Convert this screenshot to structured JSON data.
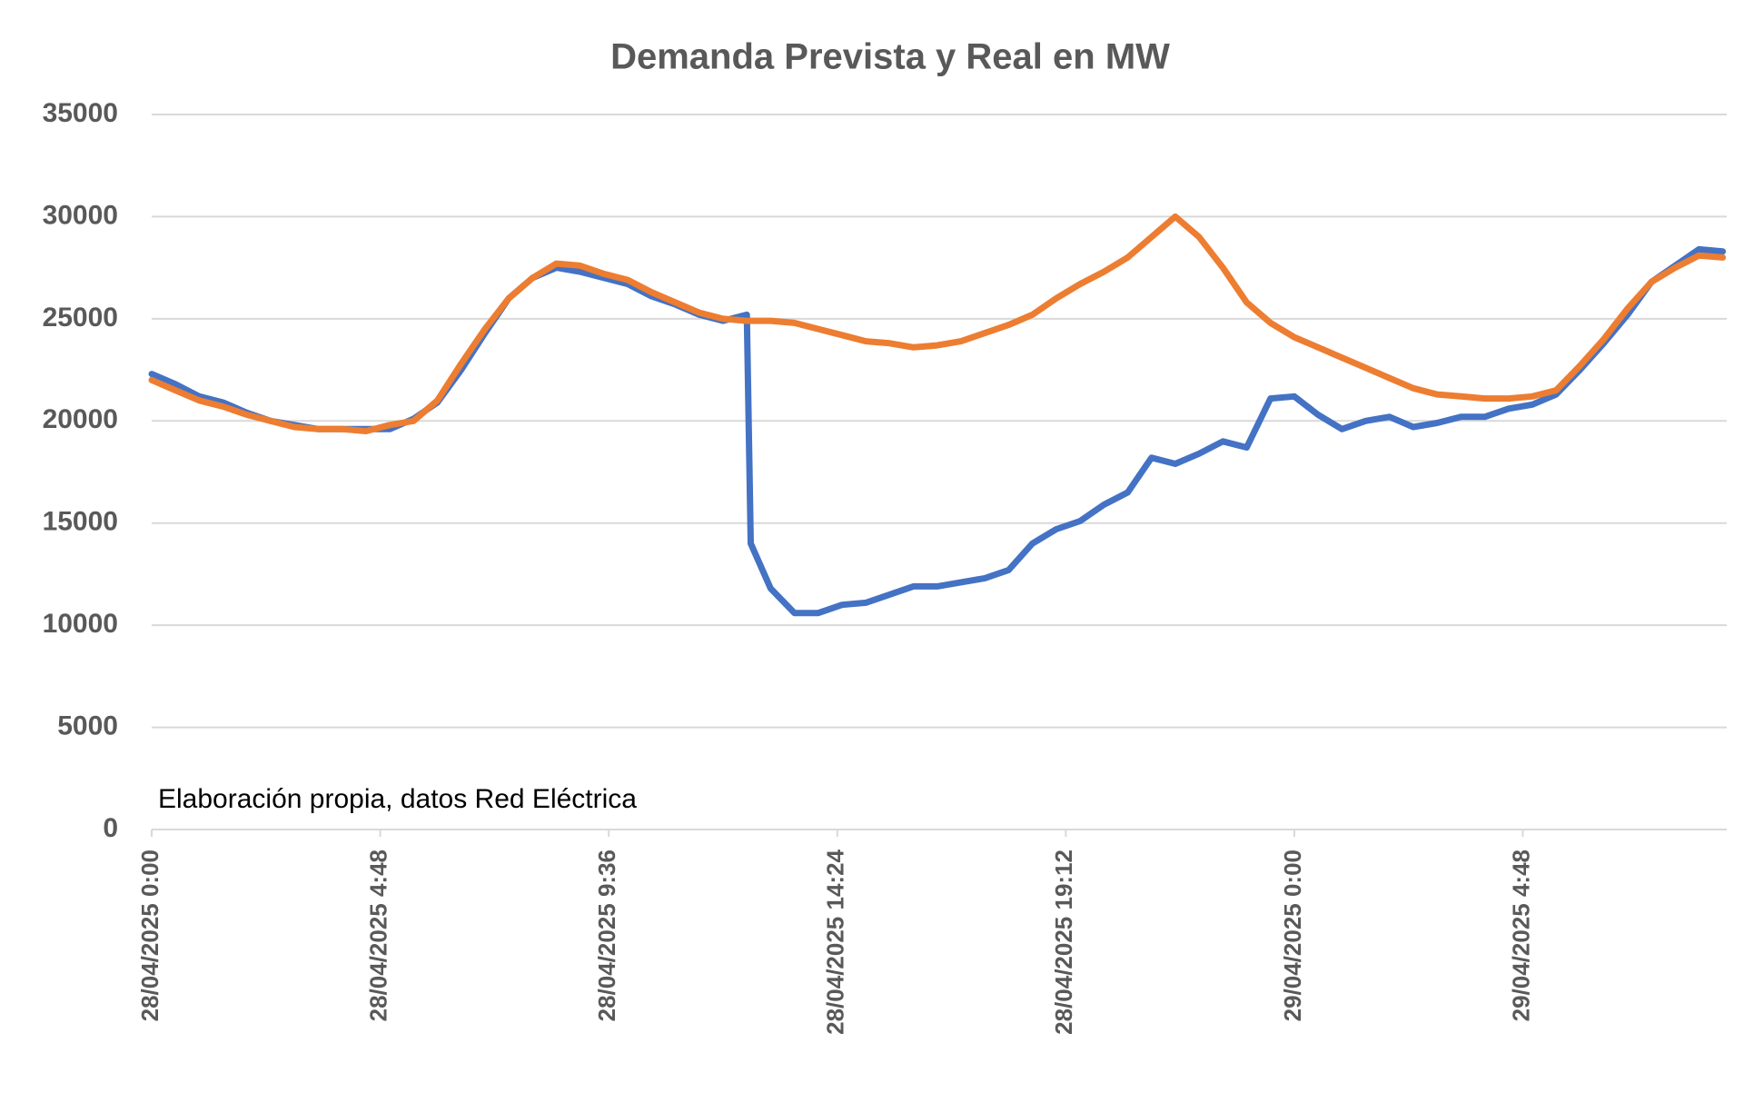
{
  "chart_data": {
    "type": "line",
    "title": "Demanda Prevista y Real en MW",
    "annotation": "Elaboración propia, datos Red Eléctrica",
    "x": [
      "28/04/2025 0:00",
      "28/04/2025 0:30",
      "28/04/2025 1:00",
      "28/04/2025 1:30",
      "28/04/2025 2:00",
      "28/04/2025 2:30",
      "28/04/2025 3:00",
      "28/04/2025 3:30",
      "28/04/2025 4:00",
      "28/04/2025 4:30",
      "28/04/2025 5:00",
      "28/04/2025 5:30",
      "28/04/2025 6:00",
      "28/04/2025 6:30",
      "28/04/2025 7:00",
      "28/04/2025 7:30",
      "28/04/2025 8:00",
      "28/04/2025 8:30",
      "28/04/2025 9:00",
      "28/04/2025 9:30",
      "28/04/2025 10:00",
      "28/04/2025 10:30",
      "28/04/2025 11:00",
      "28/04/2025 11:30",
      "28/04/2025 12:00",
      "28/04/2025 12:30",
      "28/04/2025 12:35",
      "28/04/2025 13:00",
      "28/04/2025 13:30",
      "28/04/2025 14:00",
      "28/04/2025 14:30",
      "28/04/2025 15:00",
      "28/04/2025 15:30",
      "28/04/2025 16:00",
      "28/04/2025 16:30",
      "28/04/2025 17:00",
      "28/04/2025 17:30",
      "28/04/2025 18:00",
      "28/04/2025 18:30",
      "28/04/2025 19:00",
      "28/04/2025 19:30",
      "28/04/2025 20:00",
      "28/04/2025 20:30",
      "28/04/2025 21:00",
      "28/04/2025 21:30",
      "28/04/2025 22:00",
      "28/04/2025 22:30",
      "28/04/2025 23:00",
      "28/04/2025 23:30",
      "29/04/2025 0:00",
      "29/04/2025 0:30",
      "29/04/2025 1:00",
      "29/04/2025 1:30",
      "29/04/2025 2:00",
      "29/04/2025 2:30",
      "29/04/2025 3:00",
      "29/04/2025 3:30",
      "29/04/2025 4:00",
      "29/04/2025 4:30",
      "29/04/2025 5:00",
      "29/04/2025 5:30",
      "29/04/2025 6:00",
      "29/04/2025 6:30",
      "29/04/2025 7:00",
      "29/04/2025 7:30",
      "29/04/2025 8:00",
      "29/04/2025 8:30",
      "29/04/2025 9:00"
    ],
    "series": [
      {
        "color": "#4472c4",
        "values": [
          22300,
          21800,
          21200,
          20900,
          20400,
          20000,
          19800,
          19600,
          19600,
          19600,
          19600,
          20100,
          20900,
          22500,
          24300,
          26000,
          27000,
          27500,
          27300,
          27000,
          26700,
          26100,
          25700,
          25200,
          24900,
          25200,
          14000,
          11800,
          10600,
          10600,
          11000,
          11100,
          11500,
          11900,
          11900,
          12100,
          12300,
          12700,
          14000,
          14700,
          15100,
          15900,
          16500,
          18200,
          17900,
          18400,
          19000,
          18700,
          21100,
          21200,
          20300,
          19600,
          20000,
          20200,
          19700,
          19900,
          20200,
          20200,
          20600,
          20800,
          21300,
          22500,
          23800,
          25200,
          26800,
          27600,
          28400,
          28300
        ]
      },
      {
        "color": "#ed7d31",
        "values": [
          22000,
          21500,
          21000,
          20700,
          20300,
          20000,
          19700,
          19600,
          19600,
          19500,
          19800,
          20000,
          21000,
          22800,
          24500,
          26000,
          27000,
          27700,
          27600,
          27200,
          26900,
          26300,
          25800,
          25300,
          25000,
          24900,
          24900,
          24900,
          24800,
          24500,
          24200,
          23900,
          23800,
          23600,
          23700,
          23900,
          24300,
          24700,
          25200,
          26000,
          26700,
          27300,
          28000,
          29000,
          30000,
          29000,
          27500,
          25800,
          24800,
          24100,
          23600,
          23100,
          22600,
          22100,
          21600,
          21300,
          21200,
          21100,
          21100,
          21200,
          21500,
          22700,
          24000,
          25500,
          26800,
          27500,
          28100,
          28000
        ]
      }
    ],
    "xlim": [
      "28/04/2025 0:00",
      "29/04/2025 9:05"
    ],
    "xticks": [
      "28/04/2025 0:00",
      "28/04/2025 4:48",
      "28/04/2025 9:36",
      "28/04/2025 14:24",
      "28/04/2025 19:12",
      "29/04/2025 0:00",
      "29/04/2025 4:48"
    ],
    "ylim": [
      0,
      35000
    ],
    "yticks": [
      0,
      5000,
      10000,
      15000,
      20000,
      25000,
      30000,
      35000
    ],
    "grid": true
  }
}
